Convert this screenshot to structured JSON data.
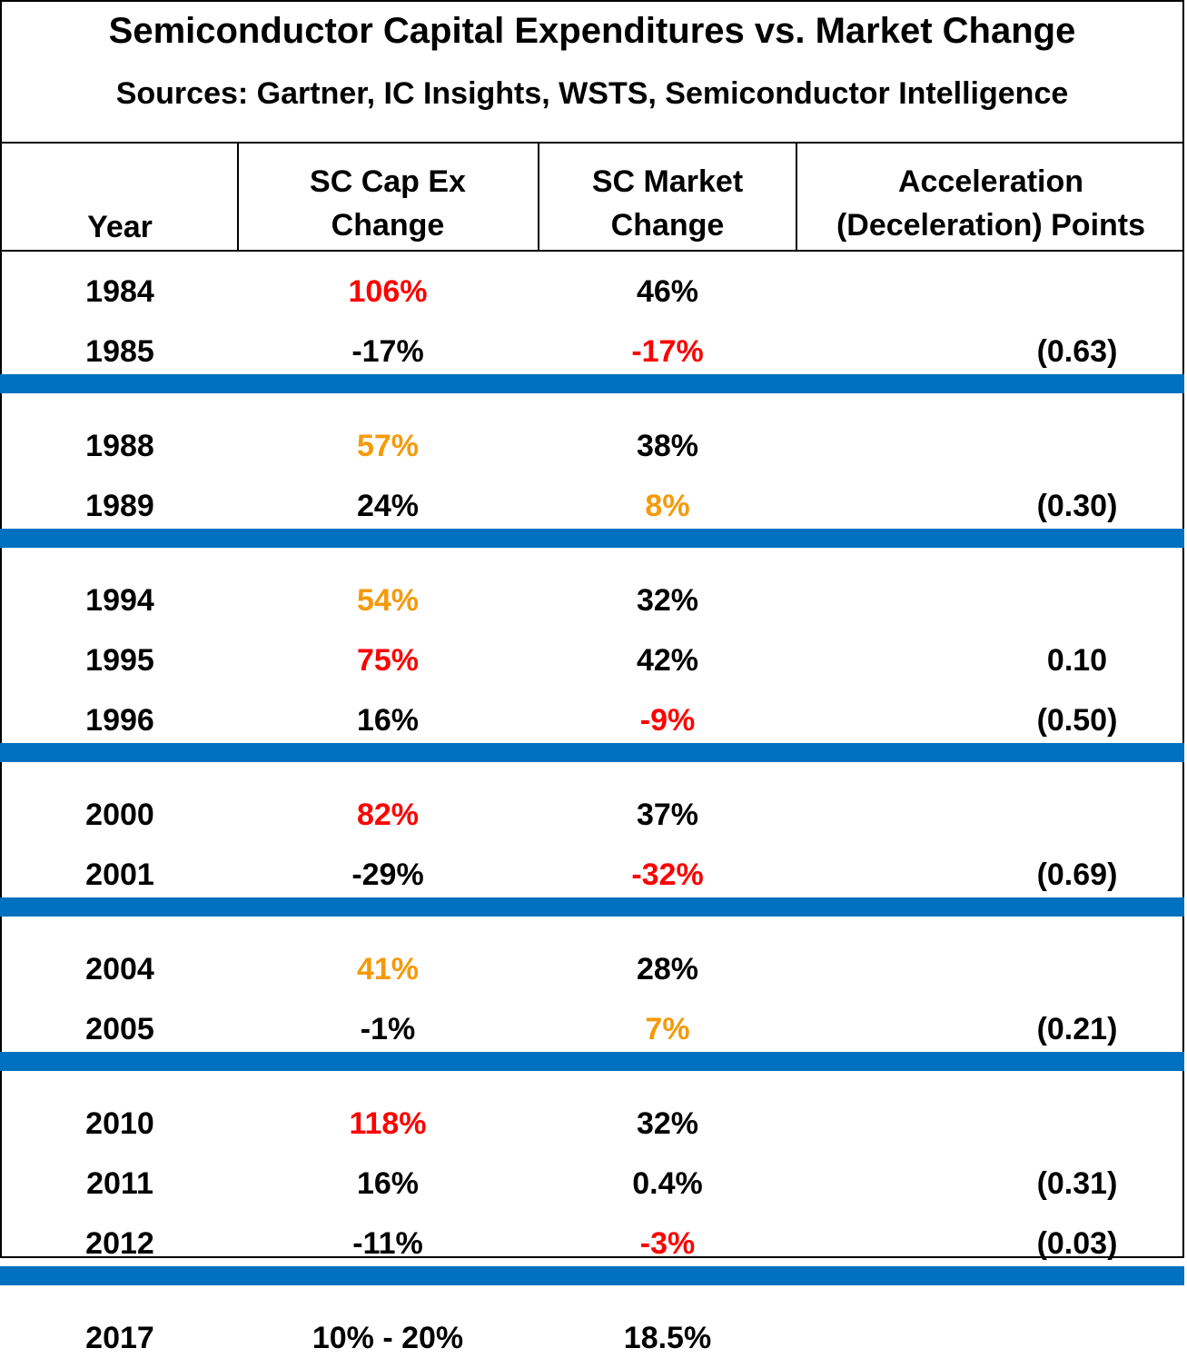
{
  "title": "Semiconductor Capital Expenditures vs. Market Change",
  "subtitle": "Sources: Gartner, IC Insights, WSTS, Semiconductor Intelligence",
  "headers": {
    "year": "Year",
    "capex_line1": "SC Cap Ex",
    "capex_line2": "Change",
    "market_line1": "SC Market",
    "market_line2": "Change",
    "accel_line1": "Acceleration",
    "accel_line2": "(Deceleration) Points"
  },
  "colors": {
    "black": "#000000",
    "red": "#ff0000",
    "orange": "#f59a0b",
    "band_blue": "#0070c0"
  },
  "groups": [
    {
      "rows": [
        {
          "year": "1984",
          "capex": "106%",
          "capex_color": "red",
          "market": "46%",
          "market_color": "black",
          "accel": ""
        },
        {
          "year": "1985",
          "capex": "-17%",
          "capex_color": "black",
          "market": "-17%",
          "market_color": "red",
          "accel": "(0.63)"
        }
      ]
    },
    {
      "rows": [
        {
          "year": "1988",
          "capex": "57%",
          "capex_color": "orange",
          "market": "38%",
          "market_color": "black",
          "accel": ""
        },
        {
          "year": "1989",
          "capex": "24%",
          "capex_color": "black",
          "market": "8%",
          "market_color": "orange",
          "accel": "(0.30)"
        }
      ]
    },
    {
      "rows": [
        {
          "year": "1994",
          "capex": "54%",
          "capex_color": "orange",
          "market": "32%",
          "market_color": "black",
          "accel": ""
        },
        {
          "year": "1995",
          "capex": "75%",
          "capex_color": "red",
          "market": "42%",
          "market_color": "black",
          "accel": "0.10"
        },
        {
          "year": "1996",
          "capex": "16%",
          "capex_color": "black",
          "market": "-9%",
          "market_color": "red",
          "accel": "(0.50)"
        }
      ]
    },
    {
      "rows": [
        {
          "year": "2000",
          "capex": "82%",
          "capex_color": "red",
          "market": "37%",
          "market_color": "black",
          "accel": ""
        },
        {
          "year": "2001",
          "capex": "-29%",
          "capex_color": "black",
          "market": "-32%",
          "market_color": "red",
          "accel": "(0.69)"
        }
      ]
    },
    {
      "rows": [
        {
          "year": "2004",
          "capex": "41%",
          "capex_color": "orange",
          "market": "28%",
          "market_color": "black",
          "accel": ""
        },
        {
          "year": "2005",
          "capex": "-1%",
          "capex_color": "black",
          "market": "7%",
          "market_color": "orange",
          "accel": "(0.21)"
        }
      ]
    },
    {
      "rows": [
        {
          "year": "2010",
          "capex": "118%",
          "capex_color": "red",
          "market": "32%",
          "market_color": "black",
          "accel": ""
        },
        {
          "year": "2011",
          "capex": "16%",
          "capex_color": "black",
          "market": "0.4%",
          "market_color": "black",
          "accel": "(0.31)"
        },
        {
          "year": "2012",
          "capex": "-11%",
          "capex_color": "black",
          "market": "-3%",
          "market_color": "red",
          "accel": "(0.03)"
        }
      ]
    },
    {
      "rows": [
        {
          "year": "2017",
          "capex": "10% - 20%",
          "capex_color": "black",
          "market": "18.5%",
          "market_color": "black",
          "accel": ""
        }
      ]
    }
  ]
}
